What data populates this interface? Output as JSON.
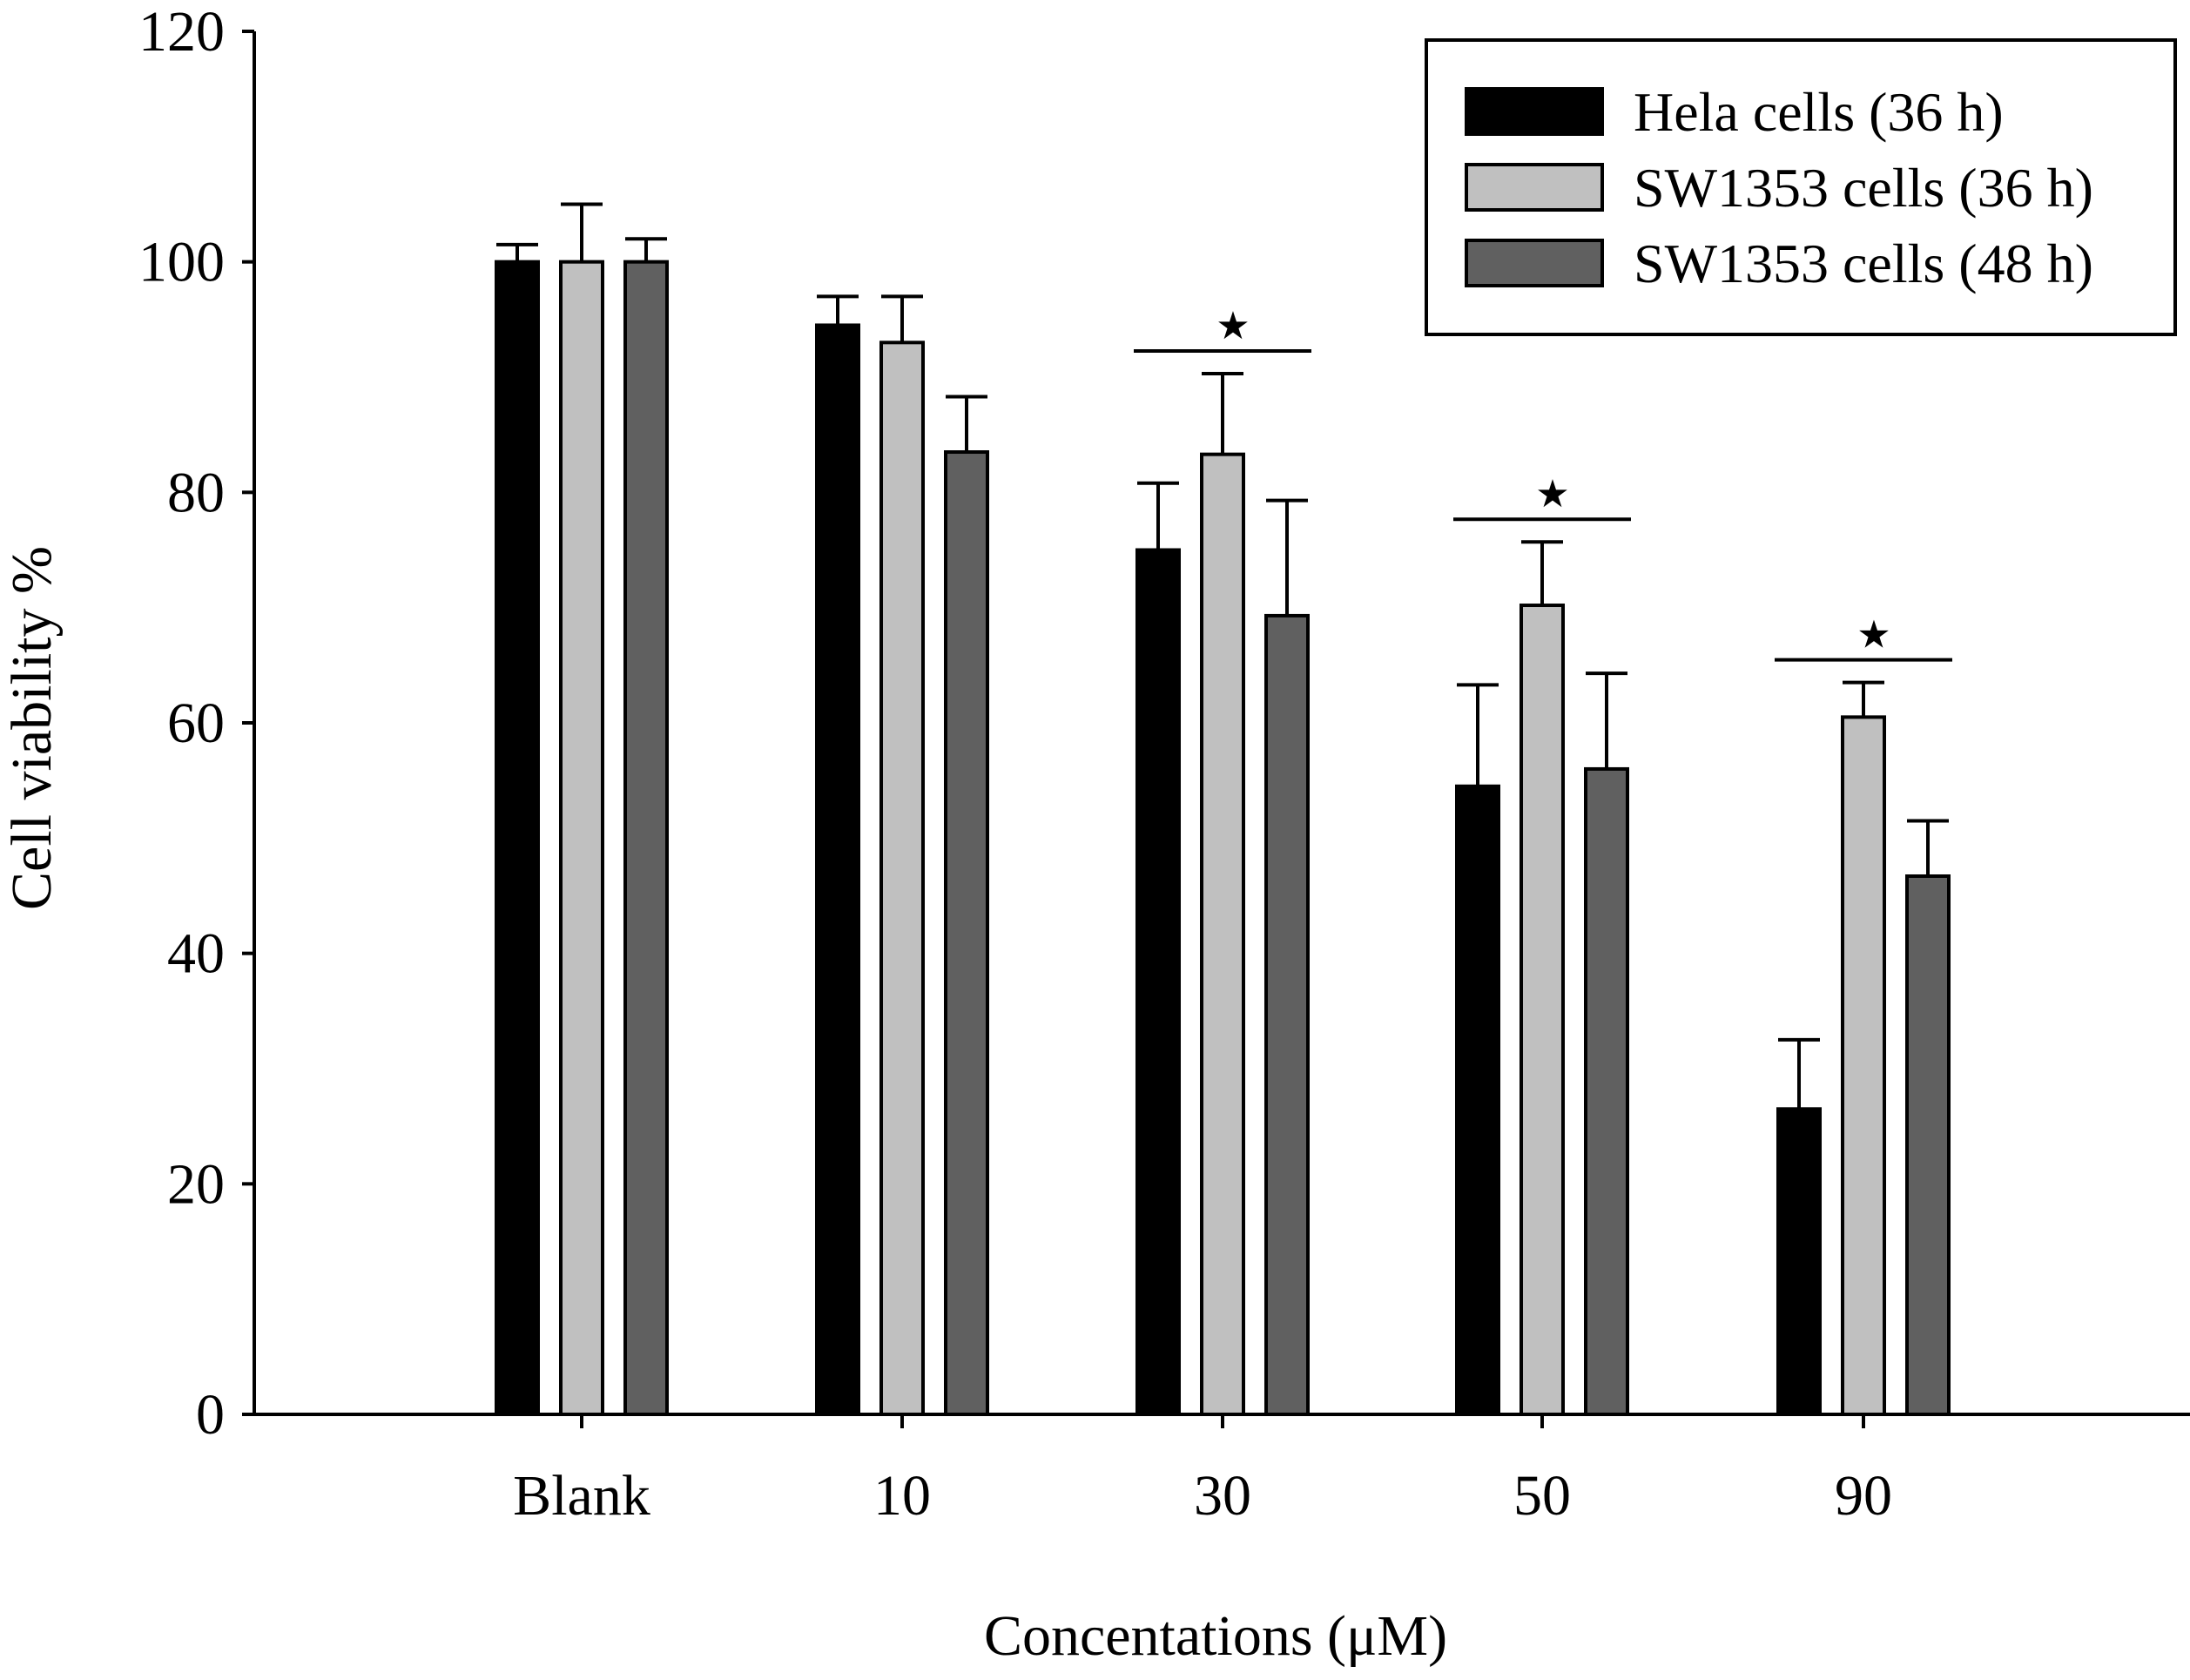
{
  "chart_data": {
    "type": "bar",
    "title": "",
    "xlabel": "Concentations (μM)",
    "ylabel": "Cell viability %",
    "ylim": [
      0,
      120
    ],
    "yticks": [
      0,
      20,
      40,
      60,
      80,
      100,
      120
    ],
    "categories": [
      "Blank",
      "10",
      "30",
      "50",
      "90"
    ],
    "series": [
      {
        "name": "Hela cells (36 h)",
        "color": "#000000",
        "values": [
          100,
          94.5,
          75,
          54.5,
          26.5
        ],
        "errors": [
          1.5,
          2.5,
          5.8,
          8.8,
          6
        ]
      },
      {
        "name": "SW1353 cells (36 h)",
        "color": "#c0c0c0",
        "values": [
          100,
          93,
          83.3,
          70.2,
          60.5
        ],
        "errors": [
          5,
          4,
          7,
          5.5,
          3
        ]
      },
      {
        "name": "SW1353 cells (48 h)",
        "color": "#606060",
        "values": [
          100,
          83.5,
          69.3,
          56,
          46.7
        ],
        "errors": [
          2,
          4.8,
          10,
          8.3,
          4.8
        ]
      }
    ],
    "significance": [
      {
        "category": "30",
        "symbol": "★"
      },
      {
        "category": "50",
        "symbol": "★"
      },
      {
        "category": "90",
        "symbol": "★"
      }
    ],
    "legend": {
      "position": "top-right",
      "entries": [
        "Hela cells (36 h)",
        "SW1353 cells (36 h)",
        "SW1353 cells (48 h)"
      ]
    },
    "grid": false
  }
}
